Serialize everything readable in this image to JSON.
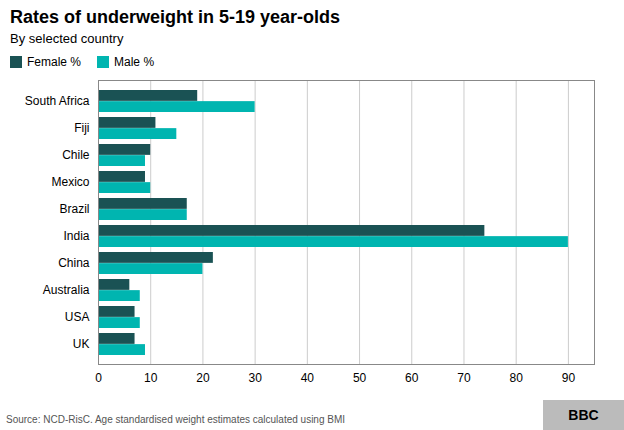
{
  "chart_data": {
    "type": "bar",
    "orientation": "horizontal",
    "title": "Rates of underweight in 5-19 year-olds",
    "subtitle": "By selected country",
    "categories": [
      "UK",
      "USA",
      "Australia",
      "China",
      "India",
      "Brazil",
      "Mexico",
      "Chile",
      "Fiji",
      "South Africa"
    ],
    "series": [
      {
        "name": "Female %",
        "color": "#1a5254",
        "values": [
          7,
          7,
          6,
          22,
          74,
          17,
          9,
          10,
          11,
          19
        ]
      },
      {
        "name": "Male %",
        "color": "#00b5b0",
        "values": [
          9,
          8,
          8,
          20,
          90,
          17,
          10,
          9,
          15,
          30
        ]
      }
    ],
    "xlim": [
      0,
      95
    ],
    "xticks": [
      0,
      10,
      20,
      30,
      40,
      50,
      60,
      70,
      80,
      90
    ],
    "grid": true,
    "legend": "upper left",
    "source": "Source: NCD-RisC. Age standardised weight estimates calculated using BMI",
    "annotations": [
      "BBC"
    ]
  }
}
